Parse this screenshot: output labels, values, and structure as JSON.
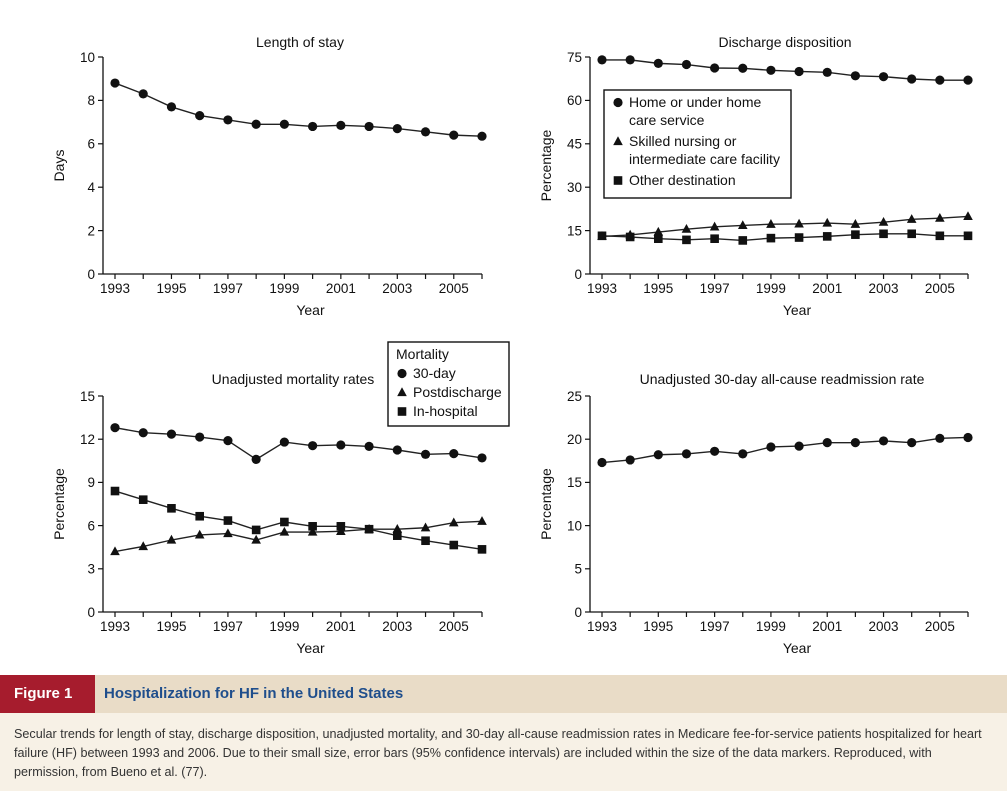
{
  "chart_data": [
    {
      "type": "line",
      "title": "Length of stay",
      "xlabel": "Year",
      "ylabel": "Days",
      "xlim": [
        1993,
        2006
      ],
      "ylim": [
        0,
        10
      ],
      "xticks": [
        "1993",
        "1995",
        "1997",
        "1999",
        "2001",
        "2003",
        "2005"
      ],
      "yticks": [
        "0",
        "2",
        "4",
        "6",
        "8",
        "10"
      ],
      "x": [
        1993,
        1994,
        1995,
        1996,
        1997,
        1998,
        1999,
        2000,
        2001,
        2002,
        2003,
        2004,
        2005,
        2006
      ],
      "series": [
        {
          "marker": "circle",
          "values": [
            8.8,
            8.3,
            7.7,
            7.3,
            7.1,
            6.9,
            6.9,
            6.8,
            6.85,
            6.8,
            6.7,
            6.55,
            6.4,
            6.35
          ]
        }
      ],
      "legend": []
    },
    {
      "type": "line",
      "title": "Discharge disposition",
      "xlabel": "Year",
      "ylabel": "Percentage",
      "xlim": [
        1993,
        2006
      ],
      "ylim": [
        0,
        75
      ],
      "xticks": [
        "1993",
        "1995",
        "1997",
        "1999",
        "2001",
        "2003",
        "2005"
      ],
      "yticks": [
        "0",
        "15",
        "30",
        "45",
        "60",
        "75"
      ],
      "x": [
        1993,
        1994,
        1995,
        1996,
        1997,
        1998,
        1999,
        2000,
        2001,
        2002,
        2003,
        2004,
        2005,
        2006
      ],
      "series": [
        {
          "name": "Home or under home care service",
          "marker": "circle",
          "values": [
            74,
            74,
            72.8,
            72.4,
            71.2,
            71.1,
            70.4,
            70,
            69.7,
            68.5,
            68.2,
            67.4,
            67,
            67
          ]
        },
        {
          "name": "Skilled nursing or intermediate care facility",
          "marker": "triangle",
          "values": [
            13,
            13.5,
            14.5,
            15.5,
            16.3,
            16.8,
            17.2,
            17.3,
            17.6,
            17.2,
            17.9,
            18.9,
            19.3,
            19.9
          ]
        },
        {
          "name": "Other destination",
          "marker": "square",
          "values": [
            13.2,
            12.8,
            12.2,
            11.8,
            12.2,
            11.6,
            12.4,
            12.6,
            13,
            13.6,
            13.9,
            13.9,
            13.2,
            13.2
          ]
        }
      ],
      "legend": [
        {
          "marker": "circle",
          "lines": [
            "Home or under home",
            "care service"
          ]
        },
        {
          "marker": "triangle",
          "lines": [
            "Skilled nursing or",
            "intermediate care facility"
          ]
        },
        {
          "marker": "square",
          "lines": [
            "Other destination"
          ]
        }
      ]
    },
    {
      "type": "line",
      "title": "Unadjusted mortality rates",
      "xlabel": "Year",
      "ylabel": "Percentage",
      "xlim": [
        1993,
        2006
      ],
      "ylim": [
        0,
        15
      ],
      "xticks": [
        "1993",
        "1995",
        "1997",
        "1999",
        "2001",
        "2003",
        "2005"
      ],
      "yticks": [
        "0",
        "3",
        "6",
        "9",
        "12",
        "15"
      ],
      "x": [
        1993,
        1994,
        1995,
        1996,
        1997,
        1998,
        1999,
        2000,
        2001,
        2002,
        2003,
        2004,
        2005,
        2006
      ],
      "series": [
        {
          "name": "30-day",
          "marker": "circle",
          "values": [
            12.8,
            12.45,
            12.35,
            12.15,
            11.9,
            10.6,
            11.8,
            11.55,
            11.6,
            11.5,
            11.25,
            10.95,
            11,
            10.7
          ]
        },
        {
          "name": "Postdischarge",
          "marker": "triangle",
          "values": [
            4.2,
            4.55,
            5,
            5.35,
            5.45,
            5,
            5.55,
            5.55,
            5.6,
            5.75,
            5.75,
            5.85,
            6.2,
            6.3
          ]
        },
        {
          "name": "In-hospital",
          "marker": "square",
          "values": [
            8.4,
            7.8,
            7.2,
            6.65,
            6.35,
            5.7,
            6.25,
            5.95,
            5.95,
            5.75,
            5.3,
            4.95,
            4.65,
            4.35
          ]
        }
      ],
      "legend_title": "Mortality",
      "legend": [
        {
          "marker": "circle",
          "lines": [
            "30-day"
          ]
        },
        {
          "marker": "triangle",
          "lines": [
            "Postdischarge"
          ]
        },
        {
          "marker": "square",
          "lines": [
            "In-hospital"
          ]
        }
      ]
    },
    {
      "type": "line",
      "title": "Unadjusted 30-day all-cause readmission rate",
      "xlabel": "Year",
      "ylabel": "Percentage",
      "xlim": [
        1993,
        2006
      ],
      "ylim": [
        0,
        25
      ],
      "xticks": [
        "1993",
        "1995",
        "1997",
        "1999",
        "2001",
        "2003",
        "2005"
      ],
      "yticks": [
        "0",
        "5",
        "10",
        "15",
        "20",
        "25"
      ],
      "x": [
        1993,
        1994,
        1995,
        1996,
        1997,
        1998,
        1999,
        2000,
        2001,
        2002,
        2003,
        2004,
        2005,
        2006
      ],
      "series": [
        {
          "marker": "circle",
          "values": [
            17.3,
            17.6,
            18.2,
            18.3,
            18.6,
            18.3,
            19.1,
            19.2,
            19.6,
            19.6,
            19.8,
            19.6,
            20.1,
            20.2
          ]
        }
      ],
      "legend": []
    }
  ],
  "figure": {
    "label": "Figure 1",
    "title": "Hospitalization for HF in the United States",
    "caption": "Secular trends for length of stay, discharge disposition, unadjusted mortality, and 30-day all-cause readmission rates in Medicare fee-for-service patients hospitalized for heart failure (HF) between 1993 and 2006. Due to their small size, error bars (95% confidence intervals) are included within the size of the data markers. Reproduced, with permission, from Bueno et al. (77)."
  }
}
